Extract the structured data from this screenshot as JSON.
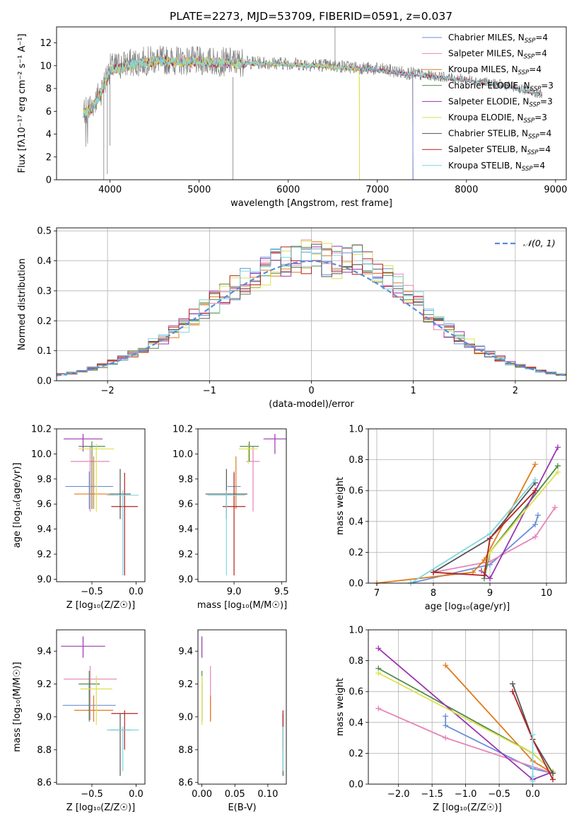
{
  "figure_title": "PLATE=2273, MJD=53709, FIBERID=0591, z=0.037",
  "colors": {
    "Chabrier MILES": "#6a8fd8",
    "Salpeter MILES": "#e684b8",
    "Kroupa MILES": "#e07b1c",
    "Chabrier ELODIE": "#4f8a4a",
    "Salpeter ELODIE": "#9b35b0",
    "Kroupa ELODIE": "#dde050",
    "Chabrier STELIB": "#555555",
    "Salpeter STELIB": "#b22222",
    "Kroupa STELIB": "#7fd6df"
  },
  "chart_data": [
    {
      "id": "spectrum",
      "type": "line",
      "title": "PLATE=2273, MJD=53709, FIBERID=0591, z=0.037",
      "xlabel": "wavelength [Angstrom, rest frame]",
      "ylabel": "Flux [fλ10⁻¹⁷ erg cm⁻² s⁻¹ A⁻¹]",
      "xlim": [
        3400,
        9120
      ],
      "ylim": [
        0,
        13.4
      ],
      "xticks": [
        4000,
        5000,
        6000,
        7000,
        8000,
        9000
      ],
      "yticks": [
        0,
        2,
        4,
        6,
        8,
        10,
        12
      ],
      "grid": false,
      "legend_position": "top-right",
      "legend": [
        "Chabrier MILES, N_SSP=4",
        "Salpeter MILES, N_SSP=4",
        "Kroupa MILES, N_SSP=4",
        "Chabrier ELODIE, N_SSP=3",
        "Salpeter ELODIE, N_SSP=3",
        "Kroupa ELODIE, N_SSP=3",
        "Chabrier STELIB, N_SSP=4",
        "Salpeter STELIB, N_SSP=4",
        "Kroupa STELIB, N_SSP=4"
      ],
      "data_envelope": {
        "x": [
          3700,
          3800,
          3900,
          4000,
          4200,
          4500,
          5000,
          5500,
          6000,
          6500,
          7000,
          7500,
          8000,
          8500,
          8850
        ],
        "y": [
          6.0,
          6.5,
          7.8,
          9.8,
          10.2,
          10.5,
          10.4,
          10.3,
          10.2,
          10.0,
          9.7,
          9.2,
          8.8,
          8.2,
          7.5
        ]
      },
      "model": {
        "x": [
          3700,
          3800,
          3900,
          4000,
          4200,
          4500,
          5000,
          5500,
          6000,
          6500,
          7000,
          7500,
          8000,
          8500,
          8850
        ],
        "y": [
          5.8,
          6.3,
          7.6,
          9.6,
          10.0,
          10.4,
          10.3,
          10.2,
          10.1,
          9.9,
          9.6,
          9.1,
          8.7,
          8.1,
          7.4
        ]
      },
      "model_end_wavelength": {
        "MILES": 7400,
        "ELODIE": 6800,
        "STELIB": 8850
      }
    },
    {
      "id": "residuals",
      "type": "line",
      "xlabel": "(data-model)/error",
      "ylabel": "Normed distribution",
      "xlim": [
        -2.5,
        2.5
      ],
      "ylim": [
        0,
        0.51
      ],
      "xticks": [
        -2,
        -1,
        0,
        1,
        2
      ],
      "yticks": [
        0.0,
        0.1,
        0.2,
        0.3,
        0.4,
        0.5
      ],
      "grid": true,
      "legend_position": "top-right",
      "legend": [
        "𝒩(0, 1)"
      ],
      "bin_edges_start": -2.5,
      "bin_width": 0.1,
      "series_order": [
        "Chabrier MILES",
        "Salpeter MILES",
        "Kroupa MILES",
        "Chabrier ELODIE",
        "Salpeter ELODIE",
        "Kroupa ELODIE",
        "Chabrier STELIB",
        "Salpeter STELIB",
        "Kroupa STELIB"
      ]
    },
    {
      "id": "age-vs-z",
      "type": "scatter",
      "xlabel": "Z [log₁₀(Z/Z☉)]",
      "ylabel": "age  [log₁₀(age/yr)]",
      "xlim": [
        -0.9,
        0.1
      ],
      "ylim": [
        8.98,
        10.2
      ],
      "xticks": [
        -0.5,
        0.0
      ],
      "yticks": [
        9.0,
        9.2,
        9.4,
        9.6,
        9.8,
        10.0,
        10.2
      ],
      "points": [
        {
          "series": "Chabrier MILES",
          "x": -0.53,
          "y": 9.74,
          "xerr": 0.27,
          "yerr": [
            0.18,
            0.12
          ]
        },
        {
          "series": "Salpeter MILES",
          "x": -0.52,
          "y": 9.94,
          "xerr": 0.22,
          "yerr": [
            0.4,
            0.12
          ]
        },
        {
          "series": "Kroupa MILES",
          "x": -0.48,
          "y": 9.68,
          "xerr": 0.22,
          "yerr": [
            0.12,
            0.3
          ]
        },
        {
          "series": "Chabrier ELODIE",
          "x": -0.5,
          "y": 10.06,
          "xerr": 0.15,
          "yerr": [
            0.5,
            0.04
          ]
        },
        {
          "series": "Salpeter ELODIE",
          "x": -0.6,
          "y": 10.12,
          "xerr": 0.22,
          "yerr": [
            0.1,
            0.04
          ]
        },
        {
          "series": "Kroupa ELODIE",
          "x": -0.45,
          "y": 10.04,
          "xerr": 0.2,
          "yerr": [
            0.5,
            0.04
          ]
        },
        {
          "series": "Chabrier STELIB",
          "x": -0.18,
          "y": 9.68,
          "xerr": 0.12,
          "yerr": [
            0.2,
            0.2
          ]
        },
        {
          "series": "Salpeter STELIB",
          "x": -0.13,
          "y": 9.58,
          "xerr": 0.15,
          "yerr": [
            0.55,
            0.27
          ]
        },
        {
          "series": "Kroupa STELIB",
          "x": -0.15,
          "y": 9.67,
          "xerr": 0.18,
          "yerr": [
            0.64,
            0.04
          ]
        }
      ]
    },
    {
      "id": "age-vs-mass",
      "type": "scatter",
      "xlabel": "mass [log₁₀(M/M☉)]",
      "ylabel": "",
      "xlim": [
        8.62,
        9.55
      ],
      "ylim": [
        8.98,
        10.2
      ],
      "xticks": [
        9.0,
        9.5
      ],
      "yticks": [
        9.0,
        9.2,
        9.4,
        9.6,
        9.8,
        10.0,
        10.2
      ],
      "points": [
        {
          "series": "Chabrier MILES",
          "x": 9.0,
          "y": 9.74,
          "xerr": 0.07,
          "yerr": [
            0.18,
            0.12
          ]
        },
        {
          "series": "Salpeter MILES",
          "x": 9.2,
          "y": 9.94,
          "xerr": 0.07,
          "yerr": [
            0.4,
            0.12
          ]
        },
        {
          "series": "Kroupa MILES",
          "x": 9.02,
          "y": 9.68,
          "xerr": 0.12,
          "yerr": [
            0.12,
            0.3
          ]
        },
        {
          "series": "Chabrier ELODIE",
          "x": 9.16,
          "y": 10.06,
          "xerr": 0.1,
          "yerr": [
            0.12,
            0.04
          ]
        },
        {
          "series": "Salpeter ELODIE",
          "x": 9.43,
          "y": 10.12,
          "xerr": 0.12,
          "yerr": [
            0.12,
            0.04
          ]
        },
        {
          "series": "Kroupa ELODIE",
          "x": 9.15,
          "y": 10.04,
          "xerr": 0.1,
          "yerr": [
            0.12,
            0.04
          ]
        },
        {
          "series": "Chabrier STELIB",
          "x": 8.92,
          "y": 9.68,
          "xerr": 0.22,
          "yerr": [
            0.2,
            0.2
          ]
        },
        {
          "series": "Salpeter STELIB",
          "x": 9.0,
          "y": 9.58,
          "xerr": 0.12,
          "yerr": [
            0.55,
            0.27
          ]
        },
        {
          "series": "Kroupa STELIB",
          "x": 8.92,
          "y": 9.67,
          "xerr": 0.2,
          "yerr": [
            0.64,
            0.04
          ]
        }
      ]
    },
    {
      "id": "massweight-vs-age",
      "type": "line",
      "xlabel": "age  [log₁₀(age/yr)]",
      "ylabel": "mass weight",
      "xlim": [
        6.85,
        10.35
      ],
      "ylim": [
        0,
        1.0
      ],
      "xticks": [
        7,
        8,
        9,
        10
      ],
      "yticks": [
        0.0,
        0.2,
        0.4,
        0.6,
        0.8,
        1.0
      ],
      "grid": true,
      "series": [
        {
          "series": "Chabrier MILES",
          "x": [
            7.6,
            9.0,
            9.8,
            9.85
          ],
          "y": [
            0.0,
            0.12,
            0.38,
            0.44
          ]
        },
        {
          "series": "Salpeter MILES",
          "x": [
            8.0,
            9.0,
            9.8,
            10.15
          ],
          "y": [
            0.07,
            0.14,
            0.3,
            0.49
          ]
        },
        {
          "series": "Kroupa MILES",
          "x": [
            7.0,
            8.7,
            8.9,
            9.8
          ],
          "y": [
            0.0,
            0.07,
            0.15,
            0.77
          ]
        },
        {
          "series": "Chabrier ELODIE",
          "x": [
            8.9,
            9.0,
            10.2
          ],
          "y": [
            0.03,
            0.2,
            0.76
          ]
        },
        {
          "series": "Salpeter ELODIE",
          "x": [
            8.85,
            9.0,
            10.2
          ],
          "y": [
            0.08,
            0.03,
            0.88
          ]
        },
        {
          "series": "Kroupa ELODIE",
          "x": [
            8.9,
            9.0,
            10.2
          ],
          "y": [
            0.08,
            0.2,
            0.72
          ]
        },
        {
          "series": "Chabrier STELIB",
          "x": [
            8.0,
            9.0,
            9.8
          ],
          "y": [
            0.07,
            0.29,
            0.65
          ]
        },
        {
          "series": "Salpeter STELIB",
          "x": [
            8.0,
            8.9,
            9.0,
            9.8
          ],
          "y": [
            0.07,
            0.05,
            0.29,
            0.6
          ]
        },
        {
          "series": "Kroupa STELIB",
          "x": [
            7.6,
            9.0,
            9.8
          ],
          "y": [
            0.0,
            0.32,
            0.67
          ]
        }
      ]
    },
    {
      "id": "mass-vs-z",
      "type": "scatter",
      "xlabel": "Z [log₁₀(Z/Z☉)]",
      "ylabel": "mass [log₁₀(M/M☉)]",
      "xlim": [
        -0.9,
        0.1
      ],
      "ylim": [
        8.59,
        9.53
      ],
      "xticks": [
        -0.5,
        0.0
      ],
      "yticks": [
        8.6,
        8.8,
        9.0,
        9.2,
        9.4
      ],
      "points": [
        {
          "series": "Chabrier MILES",
          "x": -0.53,
          "y": 9.07,
          "xerr": 0.3,
          "yerr": [
            0.1,
            0.13
          ]
        },
        {
          "series": "Salpeter MILES",
          "x": -0.52,
          "y": 9.23,
          "xerr": 0.3,
          "yerr": [
            0.25,
            0.08
          ]
        },
        {
          "series": "Kroupa MILES",
          "x": -0.48,
          "y": 9.04,
          "xerr": 0.22,
          "yerr": [
            0.07,
            0.09
          ]
        },
        {
          "series": "Chabrier ELODIE",
          "x": -0.53,
          "y": 9.2,
          "xerr": 0.12,
          "yerr": [
            0.22,
            0.08
          ]
        },
        {
          "series": "Salpeter ELODIE",
          "x": -0.6,
          "y": 9.43,
          "xerr": 0.25,
          "yerr": [
            0.07,
            0.06
          ]
        },
        {
          "series": "Kroupa ELODIE",
          "x": -0.45,
          "y": 9.17,
          "xerr": 0.18,
          "yerr": [
            0.22,
            0.08
          ]
        },
        {
          "series": "Chabrier STELIB",
          "x": -0.18,
          "y": 8.92,
          "xerr": 0.12,
          "yerr": [
            0.28,
            0.1
          ]
        },
        {
          "series": "Salpeter STELIB",
          "x": -0.13,
          "y": 9.02,
          "xerr": 0.15,
          "yerr": [
            0.22,
            0.02
          ]
        },
        {
          "series": "Kroupa STELIB",
          "x": -0.15,
          "y": 8.92,
          "xerr": 0.18,
          "yerr": [
            0.25,
            0.02
          ]
        }
      ]
    },
    {
      "id": "mass-vs-ebv",
      "type": "scatter",
      "xlabel": "E(B-V)",
      "ylabel": "",
      "xlim": [
        -0.006,
        0.128
      ],
      "ylim": [
        8.59,
        9.53
      ],
      "xticks": [
        0.0,
        0.05,
        0.1
      ],
      "xticklabels": [
        "0.00",
        "0.05",
        "0.10"
      ],
      "yticks": [
        8.6,
        8.8,
        9.0,
        9.2,
        9.4
      ],
      "points": [
        {
          "series": "Chabrier MILES",
          "x": 0.0,
          "y": 9.07,
          "yerr": [
            0.1,
            0.13
          ]
        },
        {
          "series": "Salpeter MILES",
          "x": 0.013,
          "y": 9.23,
          "yerr": [
            0.25,
            0.08
          ]
        },
        {
          "series": "Kroupa MILES",
          "x": 0.013,
          "y": 9.04,
          "yerr": [
            0.07,
            0.09
          ]
        },
        {
          "series": "Chabrier ELODIE",
          "x": 0.0,
          "y": 9.2,
          "yerr": [
            0.22,
            0.08
          ]
        },
        {
          "series": "Salpeter ELODIE",
          "x": 0.0,
          "y": 9.43,
          "yerr": [
            0.07,
            0.06
          ]
        },
        {
          "series": "Kroupa ELODIE",
          "x": 0.0,
          "y": 9.17,
          "yerr": [
            0.22,
            0.08
          ]
        },
        {
          "series": "Chabrier STELIB",
          "x": 0.123,
          "y": 8.92,
          "yerr": [
            0.28,
            0.1
          ]
        },
        {
          "series": "Salpeter STELIB",
          "x": 0.123,
          "y": 9.02,
          "yerr": [
            0.22,
            0.02
          ]
        },
        {
          "series": "Kroupa STELIB",
          "x": 0.123,
          "y": 8.92,
          "yerr": [
            0.25,
            0.02
          ]
        }
      ]
    },
    {
      "id": "massweight-vs-z",
      "type": "line",
      "xlabel": "Z [log₁₀(Z/Z☉)]",
      "ylabel": "mass weight",
      "xlim": [
        -2.45,
        0.5
      ],
      "ylim": [
        0,
        1.0
      ],
      "xticks": [
        -2.0,
        -1.5,
        -1.0,
        -0.5,
        0.0
      ],
      "yticks": [
        0.0,
        0.2,
        0.4,
        0.6,
        0.8,
        1.0
      ],
      "grid": true,
      "series": [
        {
          "series": "Chabrier MILES",
          "x": [
            -1.3,
            -1.3,
            0.0,
            0.3
          ],
          "y": [
            0.44,
            0.38,
            0.1,
            0.07
          ]
        },
        {
          "series": "Salpeter MILES",
          "x": [
            -2.3,
            -1.3,
            0.3
          ],
          "y": [
            0.49,
            0.3,
            0.07
          ]
        },
        {
          "series": "Kroupa MILES",
          "x": [
            -1.3,
            0.0,
            0.3
          ],
          "y": [
            0.77,
            0.15,
            0.07
          ]
        },
        {
          "series": "Chabrier ELODIE",
          "x": [
            -2.3,
            0.0,
            0.3
          ],
          "y": [
            0.75,
            0.2,
            0.08
          ]
        },
        {
          "series": "Salpeter ELODIE",
          "x": [
            -2.3,
            0.0,
            0.3
          ],
          "y": [
            0.88,
            0.03,
            0.08
          ]
        },
        {
          "series": "Kroupa ELODIE",
          "x": [
            -2.3,
            0.0,
            0.3
          ],
          "y": [
            0.72,
            0.2,
            0.08
          ]
        },
        {
          "series": "Chabrier STELIB",
          "x": [
            -0.3,
            0.0,
            0.3
          ],
          "y": [
            0.65,
            0.29,
            0.07
          ]
        },
        {
          "series": "Salpeter STELIB",
          "x": [
            -0.3,
            0.0,
            0.3
          ],
          "y": [
            0.6,
            0.29,
            0.03
          ]
        },
        {
          "series": "Kroupa STELIB",
          "x": [
            0.0,
            0.0,
            0.0
          ],
          "y": [
            0.32,
            0.05,
            0.02
          ]
        }
      ]
    }
  ]
}
